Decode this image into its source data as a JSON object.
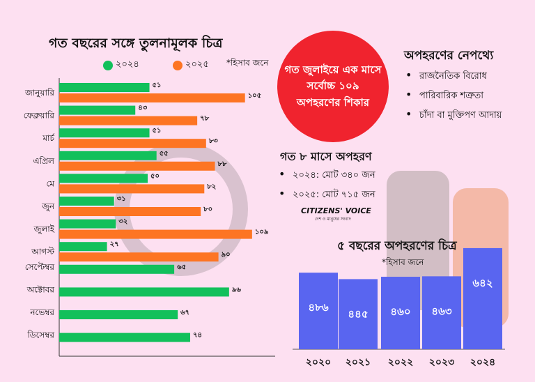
{
  "left_chart": {
    "title": "গত বছরের সঙ্গে তুলনামূলক চিত্র",
    "note": "*হিসাব জনে"
  },
  "callout": "গত জুলাইয়ে এক মাসে সর্বোচ্চ ১০৯ অপহরণের শিকার",
  "reasons": {
    "title": "অপহরণের নেপথ্যে",
    "items": [
      "রাজনৈতিক বিরোধ",
      "পারিবারিক শত্রুতা",
      "চাঁদা বা মুক্তিপণ আদায়"
    ]
  },
  "eight_months": {
    "title": "গত ৮ মাসে অপহরণ",
    "items": [
      "২০২৪: মোট ৩৪০ জন",
      "২০২৫: মোট ৭১৫ জন"
    ]
  },
  "logo": {
    "name": "CITIZENS' VOICE",
    "tagline": "দেশ ও মানুষের সংবাদ"
  },
  "right_chart": {
    "title": "৫ বছরের অপহরণের চিত্র",
    "note": "*হিসাব জনে"
  },
  "colors": {
    "y2024": "#12c05b",
    "y2025": "#fd7523",
    "five_year": "#5965f0",
    "callout": "#f0232e"
  },
  "chart_data": [
    {
      "type": "bar",
      "orientation": "horizontal",
      "title": "গত বছরের সঙ্গে তুলনামূলক চিত্র",
      "categories": [
        "জানুয়ারি",
        "ফেব্রুয়ারি",
        "মার্চ",
        "এপ্রিল",
        "মে",
        "জুন",
        "জুলাই",
        "আগস্ট",
        "সেপ্টেম্বর",
        "অক্টোবর",
        "নভেম্বর",
        "ডিসেম্বর"
      ],
      "series": [
        {
          "name": "২০২৪",
          "values": [
            51,
            43,
            51,
            55,
            50,
            31,
            32,
            27,
            65,
            96,
            67,
            74
          ],
          "labels": [
            "৫১",
            "৪৩",
            "৫১",
            "৫৫",
            "৫০",
            "৩১",
            "৩২",
            "২৭",
            "৬৫",
            "৯৬",
            "৬৭",
            "৭৪"
          ]
        },
        {
          "name": "২০২৫",
          "values": [
            105,
            78,
            83,
            88,
            82,
            80,
            109,
            90,
            null,
            null,
            null,
            null
          ],
          "labels": [
            "১০৫",
            "৭৮",
            "৮৩",
            "৮৮",
            "৮২",
            "৮০",
            "১০৯",
            "৯০",
            null,
            null,
            null,
            null
          ]
        }
      ],
      "legend": "top"
    },
    {
      "type": "bar",
      "title": "৫ বছরের অপহরণের চিত্র",
      "categories": [
        "২০২০",
        "২০২১",
        "২০২২",
        "২০২৩",
        "২০২৪"
      ],
      "values": [
        486,
        445,
        460,
        463,
        642
      ],
      "labels": [
        "৪৮৬",
        "৪৪৫",
        "৪৬০",
        "৪৬৩",
        "৬৪২"
      ]
    }
  ]
}
